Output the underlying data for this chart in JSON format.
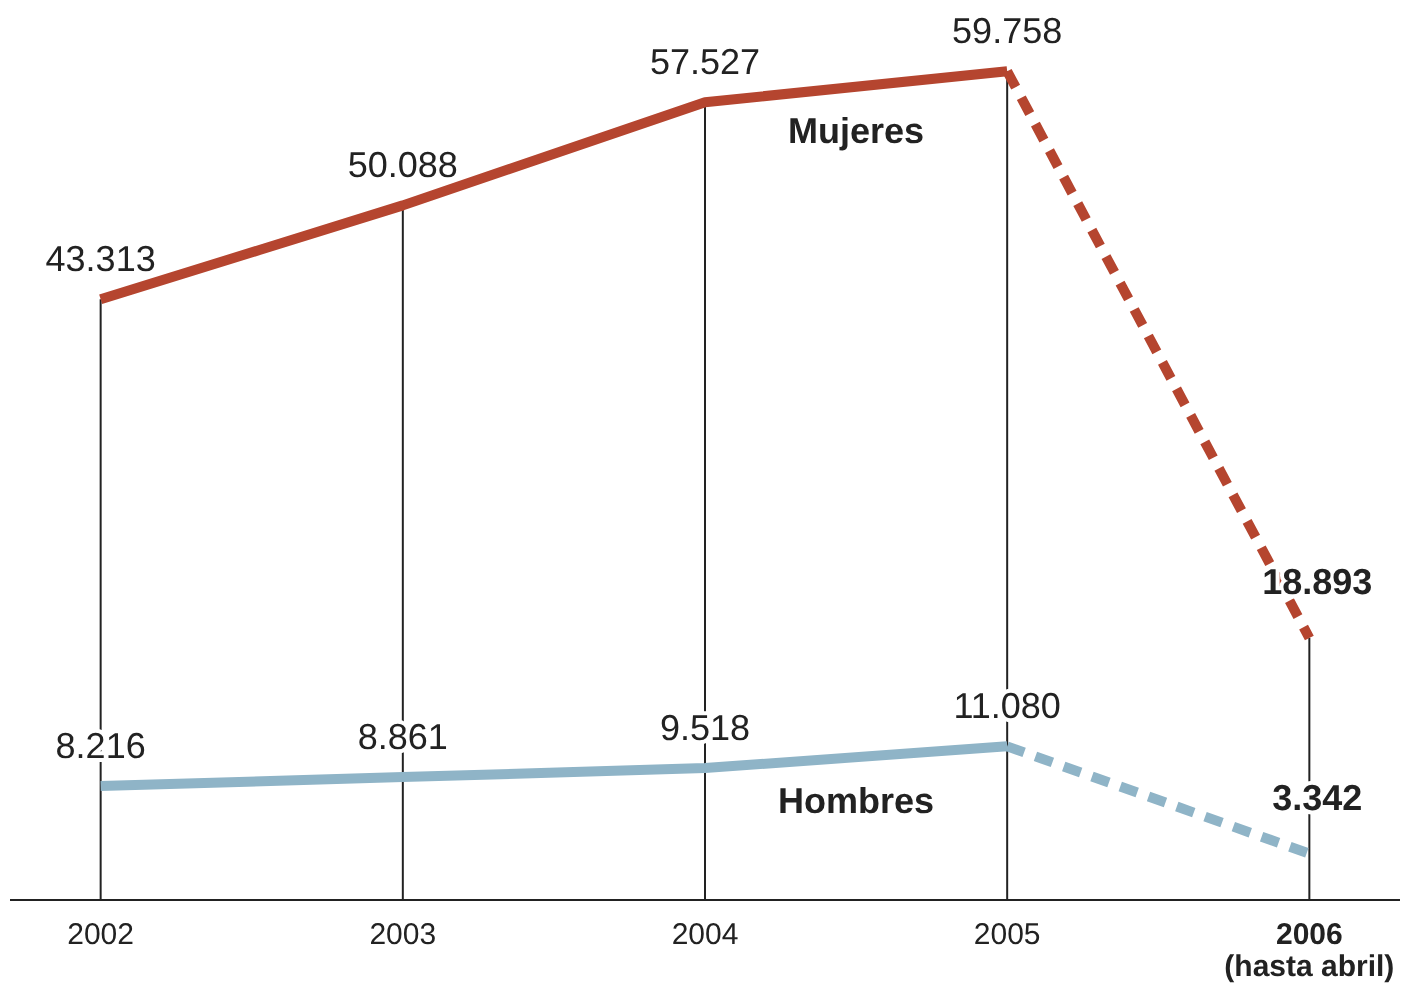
{
  "chart_data": {
    "type": "line",
    "categories": [
      "2002",
      "2003",
      "2004",
      "2005",
      "2006 (hasta abril)"
    ],
    "series": [
      {
        "name": "Mujeres",
        "color": "#b5452f",
        "line_style": "solid",
        "values": [
          43313,
          50088,
          57527,
          59758,
          null
        ],
        "value_labels": [
          "43.313",
          "50.088",
          "57.527",
          "59.758",
          null
        ]
      },
      {
        "color": "#b5452f",
        "line_style": "dashed",
        "values": [
          null,
          null,
          null,
          59758,
          18893
        ],
        "value_labels": [
          null,
          null,
          null,
          null,
          "18.893"
        ]
      },
      {
        "name": "Hombres",
        "color": "#8fb4c7",
        "line_style": "solid",
        "values": [
          8216,
          8861,
          9518,
          11080,
          null
        ],
        "value_labels": [
          "8.216",
          "8.861",
          "9.518",
          "11.080",
          null
        ]
      },
      {
        "color": "#8fb4c7",
        "line_style": "dashed",
        "values": [
          null,
          null,
          null,
          11080,
          3342
        ],
        "value_labels": [
          null,
          null,
          null,
          null,
          "3.342"
        ]
      }
    ],
    "grid": "x",
    "marker": "none"
  }
}
